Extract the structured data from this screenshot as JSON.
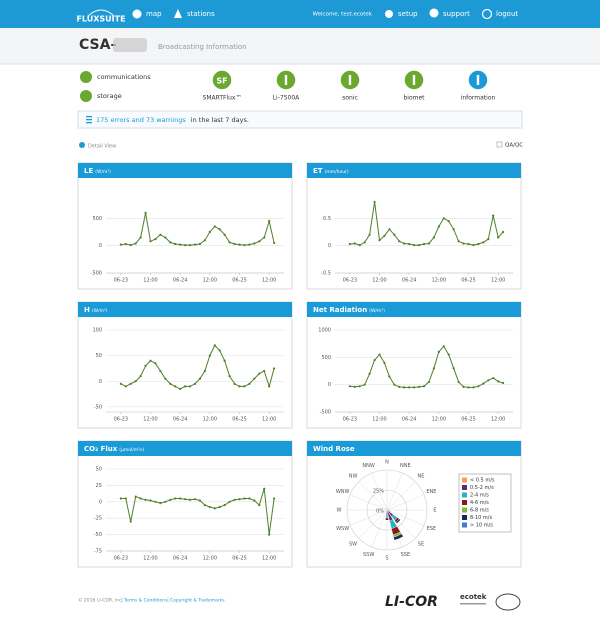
{
  "nav": {
    "logo": "FLUXSUITE",
    "links": [
      "map",
      "stations"
    ],
    "welcome": "Welcome, test.ecotek",
    "actions": [
      "setup",
      "support",
      "logout"
    ]
  },
  "header": {
    "station": "CSA-",
    "subtitle": "Broadcasting Information"
  },
  "status": {
    "left": [
      "communications",
      "storage"
    ],
    "icons": [
      {
        "badge": "SF",
        "label": "SMARTFlux™"
      },
      {
        "label": "Li-7500A"
      },
      {
        "label": "sonic"
      },
      {
        "label": "biomet"
      },
      {
        "label": "information"
      }
    ]
  },
  "alert": {
    "link": "175 errors and 73 warnings",
    "text": "in the last 7 days."
  },
  "controls": {
    "detail": "Detail View",
    "qaqc": "QA/QC"
  },
  "chart_data": [
    {
      "type": "line",
      "title": "LE",
      "units": "(W/m²)",
      "x": [
        0,
        2,
        4,
        6,
        8,
        10,
        12,
        14,
        16,
        18,
        20,
        22,
        24,
        26,
        28,
        30,
        32,
        34,
        36,
        38,
        40,
        42,
        44,
        46,
        48,
        50,
        52,
        54,
        56,
        58,
        60,
        62
      ],
      "xlim": [
        -6,
        66
      ],
      "xticks": [
        {
          "value": 0,
          "label": "06-23"
        },
        {
          "value": 12,
          "label": "12:00"
        },
        {
          "value": 24,
          "label": "06-24"
        },
        {
          "value": 36,
          "label": "12:00"
        },
        {
          "value": 48,
          "label": "06-25"
        },
        {
          "value": 60,
          "label": "12:00"
        }
      ],
      "ylim": [
        -500,
        1000
      ],
      "yticks": [
        -500,
        0,
        500
      ],
      "grid": true,
      "series": [
        {
          "color": "#4f7f2c",
          "values": [
            20,
            30,
            10,
            40,
            150,
            600,
            80,
            120,
            200,
            150,
            60,
            30,
            20,
            10,
            10,
            20,
            30,
            100,
            250,
            350,
            300,
            200,
            60,
            30,
            20,
            10,
            20,
            40,
            80,
            150,
            450,
            50
          ]
        }
      ]
    },
    {
      "type": "line",
      "title": "ET",
      "units": "(mm/hour)",
      "x": [
        0,
        2,
        4,
        6,
        8,
        10,
        12,
        14,
        16,
        18,
        20,
        22,
        24,
        26,
        28,
        30,
        32,
        34,
        36,
        38,
        40,
        42,
        44,
        46,
        48,
        50,
        52,
        54,
        56,
        58,
        60,
        62
      ],
      "xlim": [
        -6,
        66
      ],
      "xticks": [
        {
          "value": 0,
          "label": "06-23"
        },
        {
          "value": 12,
          "label": "12:00"
        },
        {
          "value": 24,
          "label": "06-24"
        },
        {
          "value": 36,
          "label": "12:00"
        },
        {
          "value": 48,
          "label": "06-25"
        },
        {
          "value": 60,
          "label": "12:00"
        }
      ],
      "ylim": [
        -0.5,
        1
      ],
      "yticks": [
        -0.5,
        0,
        0.5
      ],
      "grid": true,
      "series": [
        {
          "color": "#4f7f2c",
          "values": [
            0.03,
            0.04,
            0.01,
            0.06,
            0.2,
            0.8,
            0.1,
            0.18,
            0.3,
            0.2,
            0.08,
            0.04,
            0.03,
            0.01,
            0.01,
            0.03,
            0.04,
            0.15,
            0.35,
            0.5,
            0.45,
            0.3,
            0.08,
            0.04,
            0.03,
            0.01,
            0.03,
            0.06,
            0.12,
            0.55,
            0.15,
            0.25
          ]
        }
      ]
    },
    {
      "type": "line",
      "title": "H",
      "units": "(W/m²)",
      "x": [
        0,
        2,
        4,
        6,
        8,
        10,
        12,
        14,
        16,
        18,
        20,
        22,
        24,
        26,
        28,
        30,
        32,
        34,
        36,
        38,
        40,
        42,
        44,
        46,
        48,
        50,
        52,
        54,
        56,
        58,
        60,
        62
      ],
      "xlim": [
        -6,
        66
      ],
      "xticks": [
        {
          "value": 0,
          "label": "06-23"
        },
        {
          "value": 12,
          "label": "12:00"
        },
        {
          "value": 24,
          "label": "06-24"
        },
        {
          "value": 36,
          "label": "12:00"
        },
        {
          "value": 48,
          "label": "06-25"
        },
        {
          "value": 60,
          "label": "12:00"
        }
      ],
      "ylim": [
        -60,
        100
      ],
      "yticks": [
        -50,
        0,
        50,
        100
      ],
      "grid": true,
      "series": [
        {
          "color": "#4f7f2c",
          "values": [
            -5,
            -10,
            -5,
            0,
            10,
            30,
            40,
            35,
            20,
            5,
            -5,
            -10,
            -15,
            -10,
            -10,
            -5,
            5,
            20,
            50,
            70,
            60,
            40,
            10,
            -5,
            -10,
            -10,
            -5,
            5,
            15,
            20,
            -10,
            25
          ]
        }
      ]
    },
    {
      "type": "line",
      "title": "Net Radiation",
      "units": "(W/m²)",
      "x": [
        0,
        2,
        4,
        6,
        8,
        10,
        12,
        14,
        16,
        18,
        20,
        22,
        24,
        26,
        28,
        30,
        32,
        34,
        36,
        38,
        40,
        42,
        44,
        46,
        48,
        50,
        52,
        54,
        56,
        58,
        60,
        62
      ],
      "xlim": [
        -6,
        66
      ],
      "xticks": [
        {
          "value": 0,
          "label": "06-23"
        },
        {
          "value": 12,
          "label": "12:00"
        },
        {
          "value": 24,
          "label": "06-24"
        },
        {
          "value": 36,
          "label": "12:00"
        },
        {
          "value": 48,
          "label": "06-25"
        },
        {
          "value": 60,
          "label": "12:00"
        }
      ],
      "ylim": [
        -500,
        1000
      ],
      "yticks": [
        -500,
        0,
        500,
        1000
      ],
      "grid": true,
      "series": [
        {
          "color": "#4f7f2c",
          "values": [
            -30,
            -40,
            -30,
            0,
            200,
            450,
            550,
            400,
            150,
            0,
            -40,
            -50,
            -50,
            -50,
            -40,
            -30,
            50,
            300,
            600,
            700,
            550,
            300,
            50,
            -40,
            -50,
            -50,
            -30,
            20,
            80,
            120,
            60,
            30
          ]
        }
      ]
    },
    {
      "type": "line",
      "title": "CO₂ Flux",
      "units": "(µmol/m²s)",
      "x": [
        0,
        2,
        4,
        6,
        8,
        10,
        12,
        14,
        16,
        18,
        20,
        22,
        24,
        26,
        28,
        30,
        32,
        34,
        36,
        38,
        40,
        42,
        44,
        46,
        48,
        50,
        52,
        54,
        56,
        58,
        60,
        62
      ],
      "xlim": [
        -6,
        66
      ],
      "xticks": [
        {
          "value": 0,
          "label": "06-23"
        },
        {
          "value": 12,
          "label": "12:00"
        },
        {
          "value": 24,
          "label": "06-24"
        },
        {
          "value": 36,
          "label": "12:00"
        },
        {
          "value": 48,
          "label": "06-25"
        },
        {
          "value": 60,
          "label": "12:00"
        }
      ],
      "ylim": [
        -75,
        50
      ],
      "yticks": [
        -75,
        -50,
        -25,
        0,
        25,
        50
      ],
      "grid": true,
      "series": [
        {
          "color": "#4f7f2c",
          "values": [
            5,
            5,
            -30,
            8,
            5,
            3,
            2,
            0,
            -2,
            0,
            3,
            5,
            5,
            4,
            3,
            4,
            2,
            -5,
            -8,
            -10,
            -8,
            -5,
            0,
            3,
            4,
            5,
            5,
            2,
            -5,
            20,
            -50,
            5
          ]
        }
      ]
    },
    {
      "type": "rose",
      "title": "Wind Rose",
      "directions": [
        "N",
        "NNE",
        "NE",
        "ENE",
        "E",
        "ESE",
        "SE",
        "SSE",
        "S",
        "SSW",
        "SW",
        "WSW",
        "W",
        "WNW",
        "NW",
        "NNW"
      ],
      "rlim": [
        0,
        50
      ],
      "rticks": [
        {
          "value": 0,
          "label": "0%"
        },
        {
          "value": 25,
          "label": "25%"
        }
      ],
      "series": [
        {
          "name": "< 0.5 m/s",
          "color": "#f4a14a",
          "values": [
            0,
            0,
            0,
            0,
            0,
            0,
            0,
            0,
            0,
            0,
            0,
            0,
            0,
            0,
            0,
            0
          ]
        },
        {
          "name": "0.5-2 m/s",
          "color": "#5b2c6f",
          "values": [
            0,
            0,
            0,
            0,
            2,
            3,
            10,
            14,
            6,
            0,
            0,
            0,
            0,
            0,
            0,
            0
          ]
        },
        {
          "name": "2-4 m/s",
          "color": "#26b5c6",
          "values": [
            0,
            0,
            0,
            0,
            1,
            2,
            6,
            10,
            4,
            0,
            0,
            0,
            0,
            0,
            0,
            0
          ]
        },
        {
          "name": "4-6 m/s",
          "color": "#8b1a1a",
          "values": [
            0,
            0,
            0,
            0,
            0,
            0,
            3,
            8,
            3,
            0,
            0,
            0,
            0,
            0,
            0,
            0
          ]
        },
        {
          "name": "6-8 m/s",
          "color": "#7bbf3a",
          "values": [
            0,
            0,
            0,
            0,
            0,
            0,
            0,
            3,
            0,
            0,
            0,
            0,
            0,
            0,
            0,
            0
          ]
        },
        {
          "name": "8-10 m/s",
          "color": "#1b2a5a",
          "values": [
            0,
            0,
            0,
            0,
            0,
            0,
            2,
            4,
            0,
            0,
            0,
            0,
            0,
            0,
            0,
            0
          ]
        },
        {
          "name": "> 10 m/s",
          "color": "#3a7fd6",
          "values": [
            0,
            0,
            0,
            0,
            0,
            0,
            0,
            0,
            0,
            0,
            0,
            0,
            0,
            0,
            0,
            0
          ]
        }
      ]
    }
  ],
  "footer": {
    "copyright": "© 2016 LI-COR, Inc.",
    "links": [
      "Terms & Conditions",
      "Copyright & Trademarks"
    ],
    "logos": [
      "LI-COR",
      "ecotek"
    ]
  }
}
